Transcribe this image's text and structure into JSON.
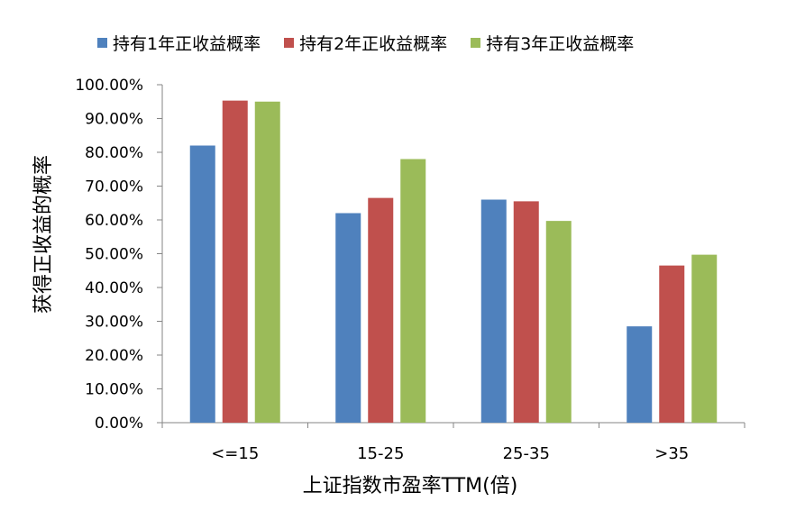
{
  "chart_data": {
    "type": "bar",
    "title": "",
    "xlabel": "上证指数市盈率TTM(倍)",
    "ylabel": "获得正收益的概率",
    "categories": [
      "<=15",
      "15-25",
      "25-35",
      ">35"
    ],
    "ylim": [
      0,
      1.0
    ],
    "yticks": [
      "0.00%",
      "10.00%",
      "20.00%",
      "30.00%",
      "40.00%",
      "50.00%",
      "60.00%",
      "70.00%",
      "80.00%",
      "90.00%",
      "100.00%"
    ],
    "grid": false,
    "legend_position": "top",
    "series": [
      {
        "name": "持有1年正收益概率",
        "color": "#4F81BD",
        "values": [
          0.82,
          0.62,
          0.66,
          0.285
        ]
      },
      {
        "name": "持有2年正收益概率",
        "color": "#C0504D",
        "values": [
          0.953,
          0.665,
          0.655,
          0.465
        ]
      },
      {
        "name": "持有3年正收益概率",
        "color": "#9BBB59",
        "values": [
          0.95,
          0.78,
          0.597,
          0.497
        ]
      }
    ]
  }
}
